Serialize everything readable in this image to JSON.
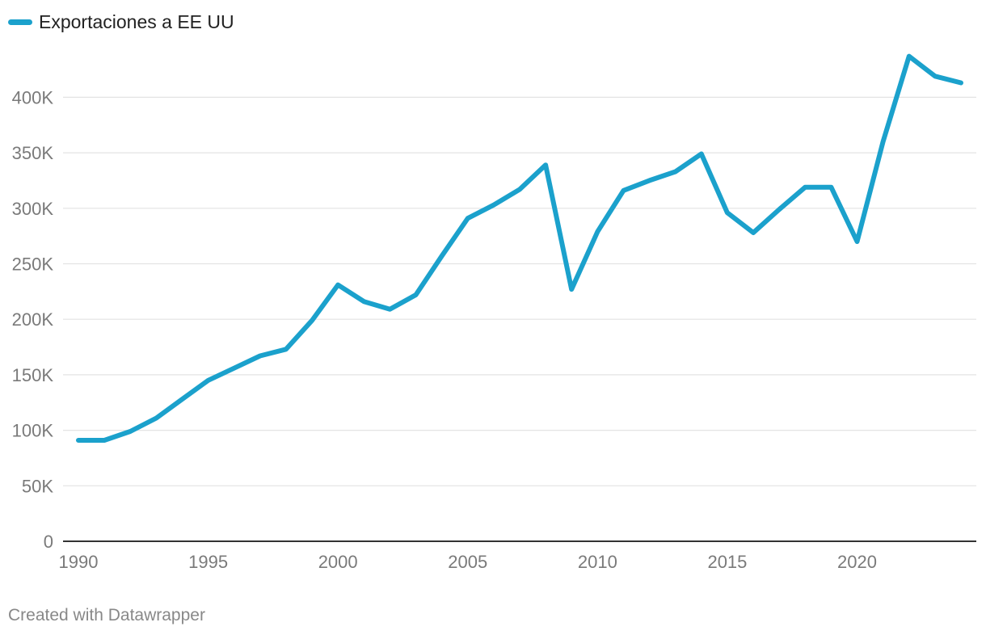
{
  "chart_data": {
    "type": "line",
    "title": "",
    "xlabel": "",
    "ylabel": "",
    "xlim": [
      1990,
      2024
    ],
    "ylim": [
      0,
      440000
    ],
    "grid": true,
    "legend_position": "top-left",
    "x_ticks": [
      1990,
      1995,
      2000,
      2005,
      2010,
      2015,
      2020
    ],
    "y_ticks": [
      0,
      50000,
      100000,
      150000,
      200000,
      250000,
      300000,
      350000,
      400000
    ],
    "y_tick_labels": [
      "0",
      "50K",
      "100K",
      "150K",
      "200K",
      "250K",
      "300K",
      "350K",
      "400K"
    ],
    "x": [
      1990,
      1991,
      1992,
      1993,
      1994,
      1995,
      1996,
      1997,
      1998,
      1999,
      2000,
      2001,
      2002,
      2003,
      2004,
      2005,
      2006,
      2007,
      2008,
      2009,
      2010,
      2011,
      2012,
      2013,
      2014,
      2015,
      2016,
      2017,
      2018,
      2019,
      2020,
      2021,
      2022,
      2023,
      2024
    ],
    "series": [
      {
        "name": "Exportaciones a EE UU",
        "color": "#1ba1cc",
        "values": [
          91000,
          91000,
          99000,
          111000,
          128000,
          145000,
          156000,
          167000,
          173000,
          199000,
          231000,
          216000,
          209000,
          222000,
          257000,
          291000,
          303000,
          317000,
          339000,
          227000,
          279000,
          316000,
          325000,
          333000,
          349000,
          296000,
          278000,
          299000,
          319000,
          319000,
          270000,
          360000,
          437000,
          419000,
          413000
        ]
      }
    ]
  },
  "legend": {
    "label": "Exportaciones a EE UU"
  },
  "footer": {
    "credit": "Created with Datawrapper"
  }
}
